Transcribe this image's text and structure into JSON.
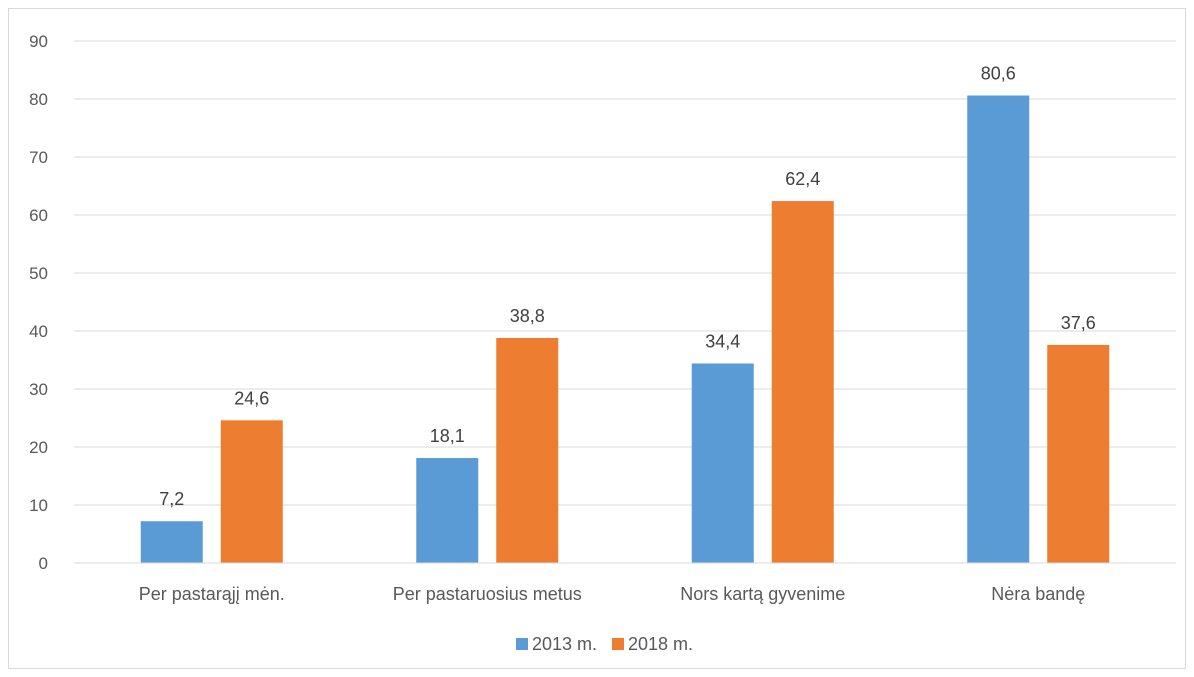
{
  "chart_data": {
    "type": "bar",
    "categories": [
      "Per pastarąjį mėn.",
      "Per pastaruosius metus",
      "Nors kartą gyvenime",
      "Nėra bandę"
    ],
    "series": [
      {
        "name": "2013 m.",
        "values": [
          7.2,
          18.1,
          34.4,
          80.6
        ],
        "labels": [
          "7,2",
          "18,1",
          "34,4",
          "80,6"
        ],
        "color": "#5b9bd5"
      },
      {
        "name": "2018 m.",
        "values": [
          24.6,
          38.8,
          62.4,
          37.6
        ],
        "labels": [
          "24,6",
          "38,8",
          "62,4",
          "37,6"
        ],
        "color": "#ed7d31"
      }
    ],
    "ylim": [
      0,
      90
    ],
    "yticks": [
      0,
      10,
      20,
      30,
      40,
      50,
      60,
      70,
      80,
      90
    ],
    "grid": true,
    "legend_position": "bottom",
    "title": "",
    "xlabel": "",
    "ylabel": ""
  }
}
